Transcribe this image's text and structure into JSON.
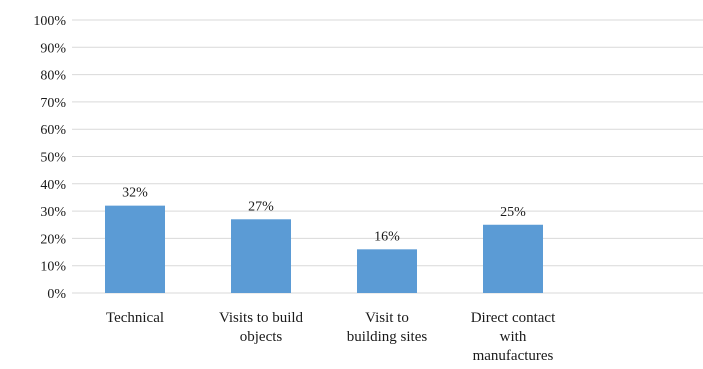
{
  "chart_data": {
    "type": "bar",
    "categories": [
      [
        "Technical"
      ],
      [
        "Visits to build",
        "objects"
      ],
      [
        "Visit to",
        "building sites"
      ],
      [
        "Direct contact",
        "with",
        "manufactures"
      ]
    ],
    "values": [
      32,
      27,
      16,
      25
    ],
    "data_labels": [
      "32%",
      "27%",
      "16%",
      "25%"
    ],
    "ylim": [
      0,
      100
    ],
    "yticks": [
      0,
      10,
      20,
      30,
      40,
      50,
      60,
      70,
      80,
      90,
      100
    ],
    "ytick_labels": [
      "0%",
      "10%",
      "20%",
      "30%",
      "40%",
      "50%",
      "60%",
      "70%",
      "80%",
      "90%",
      "100%"
    ],
    "grid": true,
    "legend": "none",
    "bar_color": "#5b9bd5",
    "grid_color": "#d9d9d9"
  }
}
